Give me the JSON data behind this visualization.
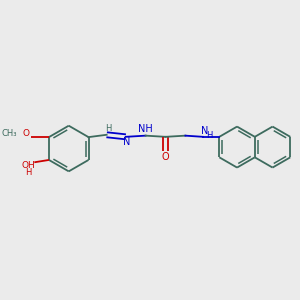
{
  "bg_color": "#ebebeb",
  "bond_color": "#3d6b5e",
  "nitrogen_color": "#0000cc",
  "oxygen_color": "#cc0000",
  "figsize": [
    3.0,
    3.0
  ],
  "dpi": 100,
  "xlim": [
    0,
    10
  ],
  "ylim": [
    0,
    10
  ]
}
